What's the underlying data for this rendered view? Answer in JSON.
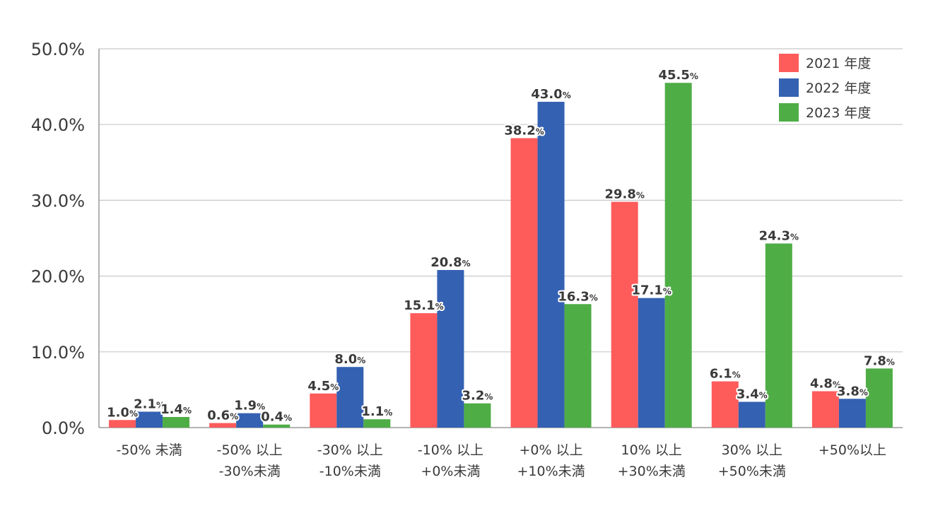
{
  "chart_data": {
    "type": "bar",
    "categories": [
      [
        "-50% 未満"
      ],
      [
        "-50% 以上",
        "-30%未満"
      ],
      [
        "-30% 以上",
        "-10%未満"
      ],
      [
        "-10% 以上",
        "+0%未満"
      ],
      [
        "+0% 以上",
        "+10%未満"
      ],
      [
        "10% 以上",
        "+30%未満"
      ],
      [
        "30% 以上",
        "+50%未満"
      ],
      [
        "+50%以上"
      ]
    ],
    "series": [
      {
        "name": "2021 年度",
        "color": "#fe5b5b",
        "values": [
          1.0,
          0.6,
          4.5,
          15.1,
          38.2,
          29.8,
          6.1,
          4.8
        ]
      },
      {
        "name": "2022 年度",
        "color": "#3461b2",
        "values": [
          2.1,
          1.9,
          8.0,
          20.8,
          43.0,
          17.1,
          3.4,
          3.8
        ]
      },
      {
        "name": "2023 年度",
        "color": "#4fad46",
        "values": [
          1.4,
          0.4,
          1.1,
          3.2,
          16.3,
          45.5,
          24.3,
          7.8
        ]
      }
    ],
    "y_ticks": [
      "0.0%",
      "10.0%",
      "20.0%",
      "30.0%",
      "40.0%",
      "50.0%"
    ],
    "ylim": [
      0,
      50
    ],
    "grid": true,
    "legend": "top-right",
    "value_suffix": "%"
  }
}
